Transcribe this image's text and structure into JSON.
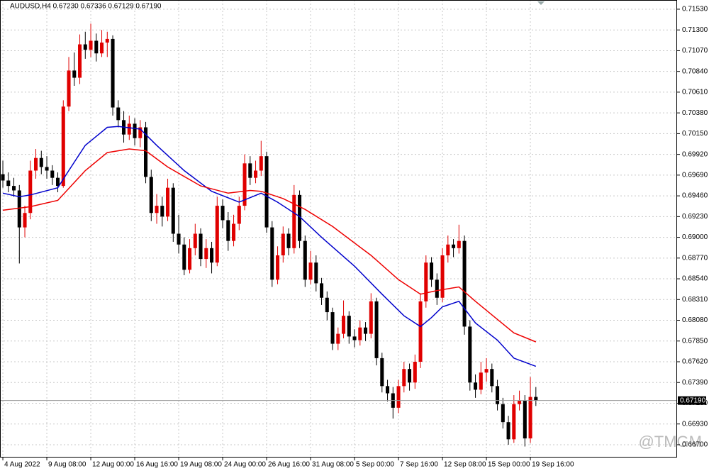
{
  "chart_data": {
    "type": "candlestick",
    "title": "AUDUSD,H4  0.67230 0.67336 0.67129 0.67190",
    "watermark": "@TMGM",
    "up_color": "#e00000",
    "down_color": "#000000",
    "grid": true,
    "xlim": [
      -0.52,
      122.7
    ],
    "ylim": [
      0.66558,
      0.71632
    ],
    "xticks": [
      {
        "value": 0,
        "label": "4 Aug 2022"
      },
      {
        "value": 8,
        "label": "9 Aug 08:00"
      },
      {
        "value": 16,
        "label": "12 Aug 00:00"
      },
      {
        "value": 24,
        "label": "16 Aug 16:00"
      },
      {
        "value": 32,
        "label": "19 Aug 08:00"
      },
      {
        "value": 40,
        "label": "24 Aug 00:00"
      },
      {
        "value": 48,
        "label": "26 Aug 16:00"
      },
      {
        "value": 56,
        "label": "31 Aug 08:00"
      },
      {
        "value": 64,
        "label": "5 Sep 00:00"
      },
      {
        "value": 72,
        "label": "7 Sep 16:00"
      },
      {
        "value": 80,
        "label": "12 Sep 08:00"
      },
      {
        "value": 88,
        "label": "15 Sep 00:00"
      },
      {
        "value": 96,
        "label": "19 Sep 16:00"
      }
    ],
    "yticks": [
      {
        "value": 0.7153,
        "label": "0.71530"
      },
      {
        "value": 0.713,
        "label": "0.71300"
      },
      {
        "value": 0.7107,
        "label": "0.71070"
      },
      {
        "value": 0.7084,
        "label": "0.70840"
      },
      {
        "value": 0.7061,
        "label": "0.70610"
      },
      {
        "value": 0.7038,
        "label": "0.70380"
      },
      {
        "value": 0.7015,
        "label": "0.70150"
      },
      {
        "value": 0.6992,
        "label": "0.69920"
      },
      {
        "value": 0.6969,
        "label": "0.69690"
      },
      {
        "value": 0.6946,
        "label": "0.69460"
      },
      {
        "value": 0.6923,
        "label": "0.69230"
      },
      {
        "value": 0.69,
        "label": "0.69000"
      },
      {
        "value": 0.6877,
        "label": "0.68770"
      },
      {
        "value": 0.6854,
        "label": "0.68540"
      },
      {
        "value": 0.6831,
        "label": "0.68310"
      },
      {
        "value": 0.6808,
        "label": "0.68080"
      },
      {
        "value": 0.6785,
        "label": "0.67850"
      },
      {
        "value": 0.6762,
        "label": "0.67620"
      },
      {
        "value": 0.6739,
        "label": "0.67390"
      },
      {
        "value": 0.6716,
        "label": "0.67160"
      },
      {
        "value": 0.6693,
        "label": "0.66930"
      },
      {
        "value": 0.667,
        "label": "0.66700"
      }
    ],
    "current_price": {
      "value": 0.6719,
      "label": "0.67190"
    },
    "ohlc": [
      [
        0.697,
        0.6985,
        0.6955,
        0.6963
      ],
      [
        0.6963,
        0.6972,
        0.695,
        0.6957
      ],
      [
        0.6957,
        0.6966,
        0.6945,
        0.6952
      ],
      [
        0.6952,
        0.6958,
        0.6871,
        0.6911
      ],
      [
        0.6911,
        0.6935,
        0.69,
        0.6927
      ],
      [
        0.6927,
        0.6985,
        0.692,
        0.6974
      ],
      [
        0.6974,
        0.6998,
        0.6965,
        0.6988
      ],
      [
        0.6988,
        0.6996,
        0.697,
        0.6978
      ],
      [
        0.6978,
        0.699,
        0.6965,
        0.6974
      ],
      [
        0.6974,
        0.698,
        0.6958,
        0.6966
      ],
      [
        0.6966,
        0.6972,
        0.695,
        0.6957
      ],
      [
        0.6957,
        0.7052,
        0.6955,
        0.7045
      ],
      [
        0.7045,
        0.71,
        0.704,
        0.7085
      ],
      [
        0.7085,
        0.7105,
        0.7068,
        0.7077
      ],
      [
        0.7077,
        0.7125,
        0.707,
        0.7114
      ],
      [
        0.7114,
        0.7128,
        0.7098,
        0.7108
      ],
      [
        0.7108,
        0.7137,
        0.71,
        0.7118
      ],
      [
        0.7118,
        0.7126,
        0.7095,
        0.7104
      ],
      [
        0.7104,
        0.713,
        0.71,
        0.7116
      ],
      [
        0.7116,
        0.7128,
        0.71,
        0.712
      ],
      [
        0.712,
        0.7124,
        0.7035,
        0.7044
      ],
      [
        0.7044,
        0.7052,
        0.7022,
        0.703
      ],
      [
        0.703,
        0.704,
        0.7005,
        0.7014
      ],
      [
        0.7014,
        0.7035,
        0.7008,
        0.7026
      ],
      [
        0.7026,
        0.7032,
        0.7002,
        0.701
      ],
      [
        0.701,
        0.703,
        0.7,
        0.7022
      ],
      [
        0.7022,
        0.7028,
        0.696,
        0.6967
      ],
      [
        0.6967,
        0.6975,
        0.6918,
        0.6927
      ],
      [
        0.6927,
        0.6948,
        0.6915,
        0.6935
      ],
      [
        0.6935,
        0.6945,
        0.6912,
        0.6923
      ],
      [
        0.6923,
        0.6965,
        0.6918,
        0.6955
      ],
      [
        0.6955,
        0.696,
        0.6895,
        0.6904
      ],
      [
        0.6904,
        0.6925,
        0.6882,
        0.6892
      ],
      [
        0.6892,
        0.69,
        0.6858,
        0.6864
      ],
      [
        0.6864,
        0.6898,
        0.686,
        0.6888
      ],
      [
        0.6888,
        0.6915,
        0.688,
        0.6904
      ],
      [
        0.6904,
        0.691,
        0.6868,
        0.6876
      ],
      [
        0.6876,
        0.6898,
        0.6866,
        0.6888
      ],
      [
        0.6888,
        0.6895,
        0.686,
        0.6872
      ],
      [
        0.6872,
        0.6945,
        0.6868,
        0.6935
      ],
      [
        0.6935,
        0.6942,
        0.691,
        0.6919
      ],
      [
        0.6919,
        0.6928,
        0.6885,
        0.6896
      ],
      [
        0.6896,
        0.6925,
        0.689,
        0.6915
      ],
      [
        0.6915,
        0.6945,
        0.6908,
        0.6935
      ],
      [
        0.6935,
        0.6992,
        0.693,
        0.6982
      ],
      [
        0.6982,
        0.699,
        0.6958,
        0.6966
      ],
      [
        0.6966,
        0.6985,
        0.696,
        0.6974
      ],
      [
        0.6974,
        0.7007,
        0.6968,
        0.699
      ],
      [
        0.699,
        0.6995,
        0.6905,
        0.6911
      ],
      [
        0.6911,
        0.6918,
        0.6845,
        0.6853
      ],
      [
        0.6853,
        0.689,
        0.6848,
        0.688
      ],
      [
        0.688,
        0.6912,
        0.6872,
        0.6904
      ],
      [
        0.6904,
        0.691,
        0.688,
        0.6888
      ],
      [
        0.6888,
        0.6958,
        0.6882,
        0.6947
      ],
      [
        0.6947,
        0.6952,
        0.6888,
        0.6896
      ],
      [
        0.6896,
        0.6902,
        0.6845,
        0.6853
      ],
      [
        0.6853,
        0.6885,
        0.6848,
        0.6872
      ],
      [
        0.6872,
        0.688,
        0.684,
        0.6849
      ],
      [
        0.6849,
        0.6855,
        0.6825,
        0.6833
      ],
      [
        0.6833,
        0.684,
        0.6808,
        0.6817
      ],
      [
        0.6817,
        0.6822,
        0.6775,
        0.6782
      ],
      [
        0.6782,
        0.68,
        0.6775,
        0.6793
      ],
      [
        0.6793,
        0.683,
        0.6788,
        0.6813
      ],
      [
        0.6813,
        0.6818,
        0.6782,
        0.679
      ],
      [
        0.679,
        0.6798,
        0.6778,
        0.6786
      ],
      [
        0.6786,
        0.6808,
        0.678,
        0.68
      ],
      [
        0.68,
        0.6806,
        0.6785,
        0.6793
      ],
      [
        0.6793,
        0.6838,
        0.6788,
        0.6829
      ],
      [
        0.6829,
        0.6833,
        0.6758,
        0.6766
      ],
      [
        0.6766,
        0.6772,
        0.6728,
        0.6735
      ],
      [
        0.6735,
        0.6742,
        0.6718,
        0.6727
      ],
      [
        0.6727,
        0.6734,
        0.6699,
        0.6711
      ],
      [
        0.6711,
        0.6742,
        0.6705,
        0.6735
      ],
      [
        0.6735,
        0.6762,
        0.6728,
        0.6754
      ],
      [
        0.6754,
        0.676,
        0.673,
        0.6739
      ],
      [
        0.6739,
        0.677,
        0.6732,
        0.6762
      ],
      [
        0.6762,
        0.6838,
        0.6755,
        0.6829
      ],
      [
        0.6829,
        0.688,
        0.6822,
        0.6872
      ],
      [
        0.6872,
        0.6878,
        0.6845,
        0.6853
      ],
      [
        0.6853,
        0.686,
        0.6825,
        0.6833
      ],
      [
        0.6833,
        0.6888,
        0.6828,
        0.688
      ],
      [
        0.688,
        0.6902,
        0.6872,
        0.6892
      ],
      [
        0.6892,
        0.6898,
        0.6878,
        0.6888
      ],
      [
        0.6888,
        0.6914,
        0.6882,
        0.6896
      ],
      [
        0.6896,
        0.6902,
        0.6792,
        0.6801
      ],
      [
        0.6801,
        0.6808,
        0.673,
        0.6739
      ],
      [
        0.6739,
        0.6748,
        0.6722,
        0.6731
      ],
      [
        0.6731,
        0.6762,
        0.6726,
        0.675
      ],
      [
        0.675,
        0.6766,
        0.674,
        0.6754
      ],
      [
        0.6754,
        0.676,
        0.6728,
        0.6735
      ],
      [
        0.6735,
        0.6742,
        0.6708,
        0.6715
      ],
      [
        0.6715,
        0.6722,
        0.6688,
        0.6695
      ],
      [
        0.6695,
        0.6702,
        0.667,
        0.6676
      ],
      [
        0.6676,
        0.6725,
        0.6672,
        0.6715
      ],
      [
        0.6715,
        0.673,
        0.6708,
        0.6719
      ],
      [
        0.6719,
        0.6725,
        0.6668,
        0.6677
      ],
      [
        0.6677,
        0.6745,
        0.6672,
        0.6723
      ],
      [
        0.6723,
        0.6734,
        0.6713,
        0.6719
      ]
    ],
    "series": [
      {
        "color": "#0000cc",
        "x": [
          0,
          3,
          5,
          10,
          12,
          15,
          19,
          21,
          25,
          28,
          33,
          38,
          43,
          47,
          50,
          54,
          58,
          64,
          69,
          73,
          76,
          78,
          80,
          83,
          86,
          90,
          93,
          97
        ],
        "values": [
          0.6949,
          0.6945,
          0.6947,
          0.6955,
          0.6974,
          0.7002,
          0.7022,
          0.7023,
          0.702,
          0.7002,
          0.6974,
          0.6951,
          0.6939,
          0.6949,
          0.6939,
          0.6923,
          0.69,
          0.6868,
          0.6837,
          0.6813,
          0.6801,
          0.6811,
          0.6823,
          0.6829,
          0.6805,
          0.6786,
          0.6766,
          0.6757
        ]
      },
      {
        "color": "#ee0000",
        "x": [
          0,
          5,
          10,
          15,
          19,
          23,
          26,
          30,
          36,
          41,
          45,
          47,
          51,
          55,
          60,
          67,
          72,
          76,
          79,
          83,
          86,
          90,
          93,
          97
        ],
        "values": [
          0.693,
          0.6934,
          0.6941,
          0.6974,
          0.6994,
          0.6998,
          0.6996,
          0.6978,
          0.6957,
          0.6949,
          0.6952,
          0.6951,
          0.6943,
          0.6931,
          0.6912,
          0.688,
          0.6853,
          0.6837,
          0.6841,
          0.6845,
          0.6829,
          0.6809,
          0.6794,
          0.6784
        ]
      }
    ]
  }
}
